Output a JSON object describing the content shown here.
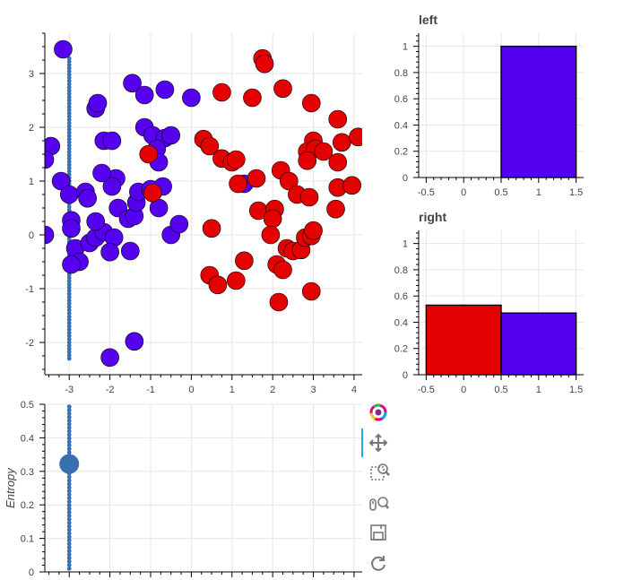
{
  "chart_data": [
    {
      "type": "scatter",
      "name": "main",
      "xlim": [
        -3.6,
        4.2
      ],
      "ylim": [
        -2.6,
        3.75
      ],
      "xticks": [
        -3,
        -2,
        -1,
        0,
        1,
        2,
        3,
        4
      ],
      "yticks": [
        -2,
        -1,
        0,
        1,
        2,
        3
      ],
      "grid": true,
      "colors": {
        "class0": "#5500ee",
        "class1": "#e30000",
        "line": "#3a6fb0"
      },
      "threshold_line_x": -3.0,
      "points_class0": [
        [
          -3.15,
          3.45
        ],
        [
          -3.45,
          1.65
        ],
        [
          -3.6,
          1.4
        ],
        [
          -3.2,
          1.0
        ],
        [
          -3.0,
          0.75
        ],
        [
          -2.6,
          0.8
        ],
        [
          -2.55,
          0.68
        ],
        [
          -2.95,
          0.27
        ],
        [
          -2.95,
          0.12
        ],
        [
          -3.6,
          0.0
        ],
        [
          -2.85,
          -0.25
        ],
        [
          -2.5,
          -0.15
        ],
        [
          -2.35,
          -0.05
        ],
        [
          -2.15,
          0.05
        ],
        [
          -1.9,
          -0.05
        ],
        [
          -2.75,
          -0.5
        ],
        [
          -2.95,
          -0.55
        ],
        [
          -2.0,
          -0.32
        ],
        [
          -1.5,
          -0.3
        ],
        [
          -2.35,
          0.25
        ],
        [
          -1.8,
          0.5
        ],
        [
          -1.55,
          0.3
        ],
        [
          -1.4,
          0.35
        ],
        [
          -1.35,
          0.6
        ],
        [
          -1.3,
          0.8
        ],
        [
          -1.0,
          0.85
        ],
        [
          -0.8,
          0.5
        ],
        [
          -0.7,
          0.9
        ],
        [
          -0.5,
          0.0
        ],
        [
          -0.3,
          0.2
        ],
        [
          -1.85,
          1.05
        ],
        [
          -1.95,
          0.9
        ],
        [
          -2.2,
          1.15
        ],
        [
          -2.15,
          1.75
        ],
        [
          -1.95,
          1.75
        ],
        [
          -2.35,
          2.35
        ],
        [
          -2.3,
          2.45
        ],
        [
          -1.45,
          2.82
        ],
        [
          -1.15,
          2.6
        ],
        [
          -0.65,
          2.7
        ],
        [
          0.0,
          2.55
        ],
        [
          -1.15,
          2.0
        ],
        [
          -0.95,
          1.85
        ],
        [
          -0.65,
          1.8
        ],
        [
          -0.5,
          1.85
        ],
        [
          -0.85,
          1.6
        ],
        [
          -0.8,
          1.35
        ],
        [
          1.3,
          0.95
        ],
        [
          -2.0,
          -2.28
        ],
        [
          -1.4,
          -1.98
        ]
      ],
      "points_class1": [
        [
          -1.05,
          1.5
        ],
        [
          -0.95,
          0.78
        ],
        [
          0.3,
          1.78
        ],
        [
          0.45,
          1.65
        ],
        [
          0.75,
          1.42
        ],
        [
          1.0,
          1.35
        ],
        [
          1.1,
          1.4
        ],
        [
          1.15,
          0.95
        ],
        [
          0.75,
          2.65
        ],
        [
          1.5,
          2.55
        ],
        [
          1.75,
          3.28
        ],
        [
          1.8,
          3.18
        ],
        [
          2.25,
          2.72
        ],
        [
          2.95,
          2.45
        ],
        [
          3.6,
          2.15
        ],
        [
          3.0,
          1.75
        ],
        [
          2.85,
          1.55
        ],
        [
          3.05,
          1.6
        ],
        [
          3.25,
          1.55
        ],
        [
          3.7,
          1.72
        ],
        [
          4.1,
          1.82
        ],
        [
          3.6,
          1.35
        ],
        [
          2.85,
          1.38
        ],
        [
          2.2,
          1.2
        ],
        [
          1.6,
          1.05
        ],
        [
          2.4,
          1.0
        ],
        [
          2.6,
          0.75
        ],
        [
          2.9,
          0.7
        ],
        [
          3.6,
          0.88
        ],
        [
          3.95,
          0.92
        ],
        [
          1.65,
          0.45
        ],
        [
          2.05,
          0.48
        ],
        [
          2.0,
          0.3
        ],
        [
          3.55,
          0.48
        ],
        [
          0.5,
          0.12
        ],
        [
          1.95,
          0.0
        ],
        [
          2.35,
          -0.25
        ],
        [
          2.5,
          -0.3
        ],
        [
          2.7,
          -0.28
        ],
        [
          2.8,
          -0.05
        ],
        [
          2.95,
          -0.02
        ],
        [
          3.0,
          0.08
        ],
        [
          1.3,
          -0.48
        ],
        [
          2.1,
          -0.55
        ],
        [
          2.25,
          -0.65
        ],
        [
          0.45,
          -0.75
        ],
        [
          0.65,
          -0.93
        ],
        [
          1.1,
          -0.85
        ],
        [
          2.95,
          -1.05
        ],
        [
          2.15,
          -1.25
        ]
      ],
      "line_dots_y_range": [
        -2.3,
        3.3
      ]
    },
    {
      "type": "bar",
      "name": "left",
      "title": "left",
      "xticks": [
        "-0.5",
        "0",
        "0.5",
        "1",
        "1.5"
      ],
      "yticks": [
        "0",
        "0.2",
        "0.4",
        "0.6",
        "0.8",
        "1"
      ],
      "xlim": [
        -0.6,
        1.6
      ],
      "ylim": [
        0,
        1.1
      ],
      "bars": [
        {
          "x0": 0.5,
          "x1": 1.5,
          "value": 1.0,
          "color": "#5500ee"
        }
      ]
    },
    {
      "type": "bar",
      "name": "right",
      "title": "right",
      "xticks": [
        "-0.5",
        "0",
        "0.5",
        "1",
        "1.5"
      ],
      "yticks": [
        "0",
        "0.2",
        "0.4",
        "0.6",
        "0.8",
        "1"
      ],
      "xlim": [
        -0.6,
        1.6
      ],
      "ylim": [
        0,
        1.1
      ],
      "bars": [
        {
          "x0": -0.5,
          "x1": 0.5,
          "value": 0.53,
          "color": "#e30000"
        },
        {
          "x0": 0.5,
          "x1": 1.5,
          "value": 0.47,
          "color": "#5500ee"
        }
      ]
    },
    {
      "type": "scatter",
      "name": "entropy",
      "ylabel": "Entropy",
      "xlim": [
        -3.6,
        4.2
      ],
      "ylim": [
        0,
        0.5
      ],
      "yticks": [
        "0",
        "0.1",
        "0.2",
        "0.3",
        "0.4",
        "0.5"
      ],
      "threshold_line_x": -3.0,
      "marker": {
        "x": -3.0,
        "y": 0.322,
        "color": "#3a6fb0"
      }
    }
  ],
  "toolbar": {
    "tools": [
      "bokeh-logo-icon",
      "pan-icon",
      "box-zoom-icon",
      "wheel-zoom-icon",
      "save-icon",
      "reset-icon"
    ]
  }
}
